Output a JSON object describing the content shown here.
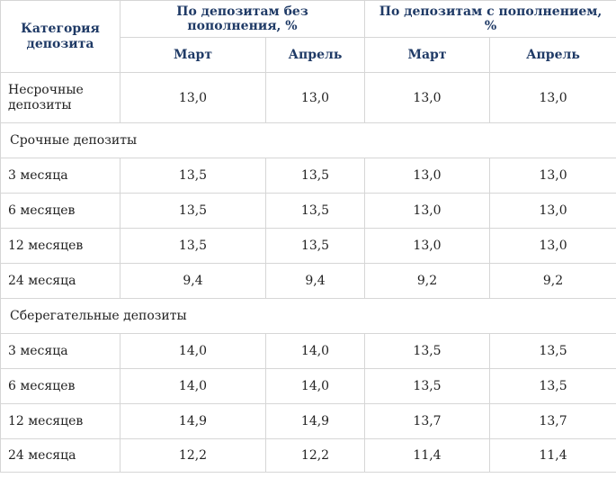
{
  "header": {
    "category": "Категория депозита",
    "group_no_topup": "По депозитам без пополнения, %",
    "group_topup": "По депозитам с пополнением, %",
    "months": [
      "Март",
      "Апрель",
      "Март",
      "Апрель"
    ]
  },
  "rows": {
    "demand": {
      "label": "Несрочные депозиты",
      "values": [
        "13,0",
        "13,0",
        "13,0",
        "13,0"
      ]
    },
    "term_title": "Срочные депозиты",
    "term": [
      {
        "label": "3 месяца",
        "values": [
          "13,5",
          "13,5",
          "13,0",
          "13,0"
        ]
      },
      {
        "label": "6 месяцев",
        "values": [
          "13,5",
          "13,5",
          "13,0",
          "13,0"
        ]
      },
      {
        "label": "12 месяцев",
        "values": [
          "13,5",
          "13,5",
          "13,0",
          "13,0"
        ]
      },
      {
        "label": "24 месяца",
        "values": [
          "9,4",
          "9,4",
          "9,2",
          "9,2"
        ]
      }
    ],
    "savings_title": "Сберегательные депозиты",
    "savings": [
      {
        "label": "3 месяца",
        "values": [
          "14,0",
          "14,0",
          "13,5",
          "13,5"
        ]
      },
      {
        "label": "6 месяцев",
        "values": [
          "14,0",
          "14,0",
          "13,5",
          "13,5"
        ]
      },
      {
        "label": "12 месяцев",
        "values": [
          "14,9",
          "14,9",
          "13,7",
          "13,7"
        ]
      },
      {
        "label": "24 месяца",
        "values": [
          "12,2",
          "12,2",
          "11,4",
          "11,4"
        ]
      }
    ]
  },
  "colors": {
    "header_text": "#1f3a66",
    "border": "#d6d6d6",
    "body_text": "#222222"
  }
}
